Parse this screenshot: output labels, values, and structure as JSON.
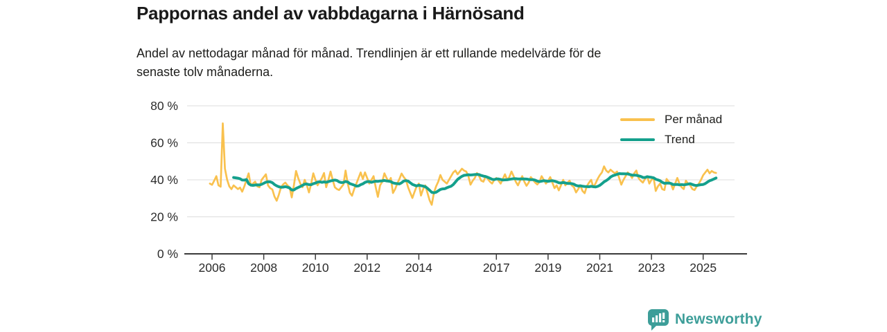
{
  "title": "Pappornas andel av vabbdagarna i Härnösand",
  "subtitle_lines": [
    "Andel av nettodagar månad för månad. Trendlinjen är ett rullande medelvärde för de",
    "senaste tolv månaderna."
  ],
  "legend": [
    {
      "label": "Per månad",
      "color": "#f9c14e"
    },
    {
      "label": "Trend",
      "color": "#14a08c"
    }
  ],
  "footer": {
    "brand": "Newsworthy"
  },
  "colors": {
    "per_manad": "#f9c14e",
    "trend": "#14a08c",
    "grid": "#dcdcdc",
    "axis": "#3a3a3a",
    "tick_text": "#2b2b2b",
    "brand": "#3d9e99"
  },
  "chart_data": {
    "type": "line",
    "title": "Pappornas andel av vabbdagarna i Härnösand",
    "unit": "%",
    "start_month": "2005-12",
    "end_month": "2025-07",
    "x_tick_years": [
      2006,
      2008,
      2010,
      2012,
      2014,
      2017,
      2019,
      2021,
      2023,
      2025
    ],
    "y_ticks": [
      0,
      20,
      40,
      60,
      80
    ],
    "y_tick_labels": [
      "0 %",
      "20 %",
      "40 %",
      "60 %",
      "80 %"
    ],
    "ylim": [
      0,
      85
    ],
    "grid": "horizontal",
    "legend_position": "top-right",
    "series": [
      {
        "name": "Per månad",
        "frequency": "monthly",
        "values": [
          38,
          37.3,
          39.5,
          42,
          37,
          36.3,
          70.5,
          46,
          40,
          36.5,
          35,
          37,
          36,
          35,
          35.8,
          33.6,
          36.5,
          40,
          43.5,
          37,
          38,
          39,
          36.5,
          36,
          40,
          41.5,
          43,
          37,
          35.5,
          34.8,
          31,
          28.7,
          32,
          36,
          37.5,
          38.5,
          37,
          36,
          30.5,
          37,
          44.8,
          41,
          38,
          36,
          40,
          37,
          33.2,
          38,
          43.5,
          40,
          37,
          39,
          41,
          43.7,
          36,
          40,
          44.5,
          40,
          36,
          35,
          34.5,
          36,
          37.5,
          45,
          38,
          33,
          31.4,
          35,
          38,
          41,
          44,
          40.5,
          44,
          41,
          38,
          40,
          42,
          36,
          30.8,
          37,
          39,
          43.5,
          41,
          39,
          41,
          32.9,
          35,
          38,
          40.5,
          43.4,
          41.5,
          40,
          36,
          33,
          30.2,
          33.5,
          36.5,
          38,
          31.5,
          35,
          37,
          33,
          29,
          26.5,
          33,
          36.5,
          39,
          42.6,
          40,
          39,
          38,
          40,
          42,
          44,
          45,
          43,
          44.5,
          46,
          45,
          44.5,
          42,
          37.4,
          39.5,
          41,
          43.7,
          42,
          39.5,
          39,
          42,
          40.5,
          39,
          38,
          40,
          41,
          39.5,
          38,
          40.5,
          43,
          40,
          41.5,
          44.5,
          42,
          39,
          37,
          39.5,
          42,
          39,
          36.8,
          38.5,
          41.5,
          40,
          38.5,
          37.5,
          39,
          42,
          40,
          38,
          39.5,
          41.5,
          38.5,
          35.5,
          37,
          34.3,
          37,
          40,
          37,
          38.5,
          39.5,
          37,
          36,
          33.2,
          35,
          37,
          34,
          32.8,
          36.5,
          38.5,
          40,
          36,
          38,
          40.5,
          42.5,
          44,
          47.3,
          45,
          44,
          45.5,
          44.5,
          43.5,
          44.5,
          41,
          37.4,
          40,
          42,
          44,
          43,
          41,
          43.5,
          45,
          41,
          39.5,
          38.5,
          40.5,
          42,
          38,
          40,
          41,
          34,
          36.5,
          38,
          35,
          34.5,
          40.5,
          39,
          38,
          34.8,
          38,
          41,
          38,
          36,
          35,
          39.5,
          38,
          37,
          35,
          34.5,
          36.5,
          38,
          40,
          42.5,
          44,
          45.5,
          43.5,
          44.8,
          44,
          43.7
        ]
      },
      {
        "name": "Trend",
        "derivation": "rolling_mean_12_months"
      }
    ]
  }
}
